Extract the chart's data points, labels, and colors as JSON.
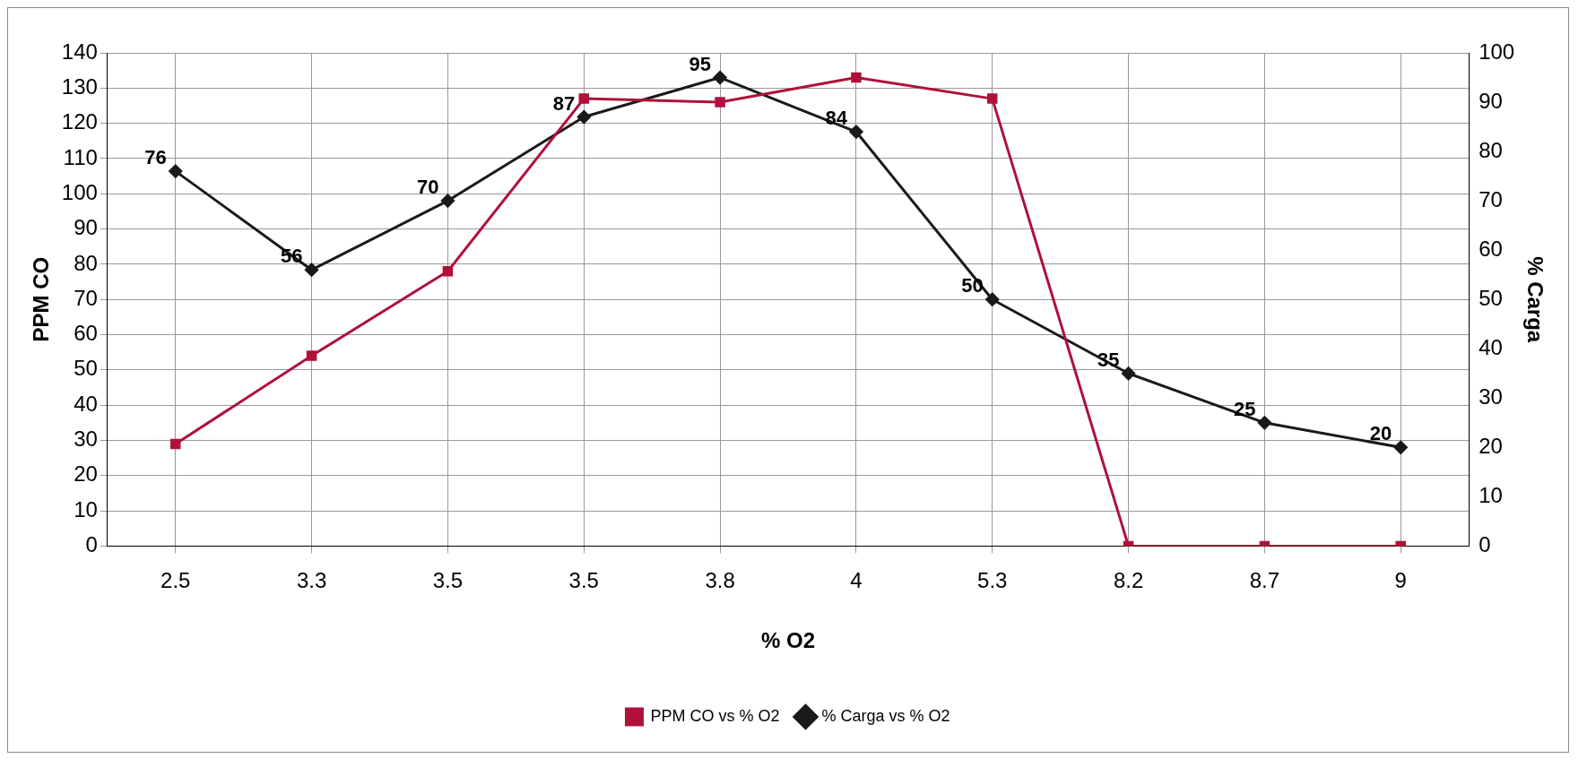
{
  "chart_data": {
    "type": "line",
    "xlabel": "% O2",
    "ylabel": "PPM CO",
    "y2label": "% Carga",
    "categories": [
      "2.5",
      "3.3",
      "3.5",
      "3.5",
      "3.8",
      "4",
      "5.3",
      "8.2",
      "8.7",
      "9"
    ],
    "series": [
      {
        "name": "PPM CO vs % O2",
        "color": "#b0103a",
        "marker": "square",
        "values": [
          29,
          54,
          78,
          127,
          126,
          133,
          127,
          0,
          0,
          0
        ]
      },
      {
        "name": "% Carga vs % O2",
        "color": "#1a1a1a",
        "marker": "diamond",
        "axis": "y2",
        "values": [
          76,
          56,
          70,
          87,
          95,
          84,
          50,
          35,
          25,
          20
        ],
        "value_labels": [
          "76",
          "56",
          "70",
          "87",
          "95",
          "84",
          "50",
          "35",
          "25",
          "20"
        ]
      }
    ],
    "ylim": [
      0,
      140
    ],
    "yticks": [
      0,
      10,
      20,
      30,
      40,
      50,
      60,
      70,
      80,
      90,
      100,
      110,
      120,
      130,
      140
    ],
    "y2lim": [
      0,
      100
    ],
    "y2ticks": [
      0,
      10,
      20,
      30,
      40,
      50,
      60,
      70,
      80,
      90,
      100
    ],
    "grid": true,
    "legend": "bottom",
    "line_style": "solid"
  }
}
